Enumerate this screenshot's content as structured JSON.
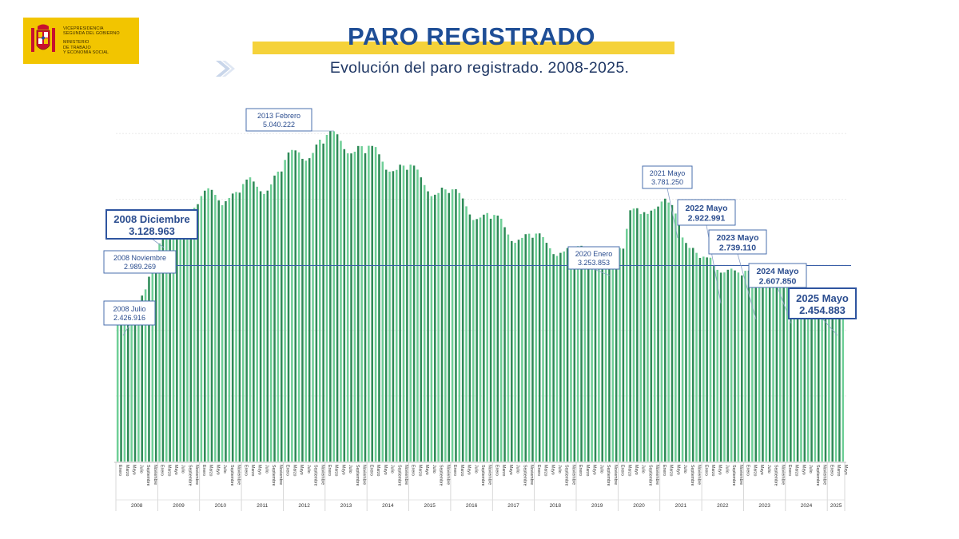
{
  "logo": {
    "line1": "VICEPRESIDENCIA",
    "line2": "SEGUNDA DEL GOBIERNO",
    "line3": "MINISTERIO",
    "line4": "DE TRABAJO",
    "line5": "Y ECONOMÍA SOCIAL",
    "icon": "spain-coat-of-arms-icon"
  },
  "header": {
    "title": "PARO REGISTRADO",
    "subtitle": "Evolución del paro registrado. 2008-2025.",
    "arrow_icon": "chevron-right-icon"
  },
  "colors": {
    "bar_light": "#6fcf97",
    "bar_dark": "#2e8b57",
    "reference_line": "#3a5fa8",
    "annotation": "#2b4d8f",
    "title": "#1f4e96",
    "band": "#f5d23a"
  },
  "chart_data": {
    "type": "bar",
    "title": "Evolución del paro registrado. 2008-2025.",
    "xlabel": "",
    "ylabel": "",
    "ylim": [
      0,
      5200000
    ],
    "grid": true,
    "legend": "none",
    "month_labels": [
      "Enero",
      "Marzo",
      "Mayo",
      "Julio",
      "Septiembre",
      "Noviembre"
    ],
    "years": [
      {
        "label": "2008",
        "months": 12
      },
      {
        "label": "2009",
        "months": 12
      },
      {
        "label": "2010",
        "months": 12
      },
      {
        "label": "2011",
        "months": 12
      },
      {
        "label": "2012",
        "months": 12
      },
      {
        "label": "2013",
        "months": 12
      },
      {
        "label": "2014",
        "months": 12
      },
      {
        "label": "2015",
        "months": 12
      },
      {
        "label": "2016",
        "months": 12
      },
      {
        "label": "2017",
        "months": 12
      },
      {
        "label": "2018",
        "months": 12
      },
      {
        "label": "2019",
        "months": 12
      },
      {
        "label": "2020",
        "months": 12
      },
      {
        "label": "2021",
        "months": 12
      },
      {
        "label": "2022",
        "months": 12
      },
      {
        "label": "2023",
        "months": 12
      },
      {
        "label": "2024",
        "months": 12
      },
      {
        "label": "2025",
        "months": 5
      }
    ],
    "values": [
      2261000,
      2315000,
      2301000,
      2338000,
      2352000,
      2390000,
      2427000,
      2531000,
      2625000,
      2818000,
      2989269,
      3128963,
      3327000,
      3482000,
      3605000,
      3645000,
      3620000,
      3565000,
      3544000,
      3629000,
      3709000,
      3808000,
      3868000,
      3924000,
      4048000,
      4130000,
      4166000,
      4142000,
      4066000,
      3982000,
      3908000,
      3970000,
      4018000,
      4086000,
      4110000,
      4100000,
      4231000,
      4299000,
      4333000,
      4269000,
      4190000,
      4121000,
      4080000,
      4131000,
      4226000,
      4360000,
      4420000,
      4422000,
      4599000,
      4712000,
      4751000,
      4744000,
      4714000,
      4615000,
      4587000,
      4625000,
      4705000,
      4833000,
      4907000,
      4848000,
      4980000,
      5040222,
      5035000,
      4989000,
      4890000,
      4763000,
      4699000,
      4698000,
      4724000,
      4811000,
      4808000,
      4701000,
      4814000,
      4812000,
      4795000,
      4684000,
      4572000,
      4449000,
      4420000,
      4428000,
      4447000,
      4526000,
      4512000,
      4448000,
      4526000,
      4512000,
      4451000,
      4333000,
      4215000,
      4120000,
      4046000,
      4068000,
      4094000,
      4176000,
      4149000,
      4094000,
      4150000,
      4152000,
      4094000,
      4011000,
      3891000,
      3767000,
      3683000,
      3697000,
      3720000,
      3764000,
      3789000,
      3702000,
      3760000,
      3750000,
      3702000,
      3573000,
      3462000,
      3362000,
      3335000,
      3382000,
      3410000,
      3467000,
      3474000,
      3412000,
      3476000,
      3479000,
      3422000,
      3335000,
      3252000,
      3163000,
      3135000,
      3182000,
      3203000,
      3255000,
      3252000,
      3202000,
      3285000,
      3289000,
      3255000,
      3164000,
      3079000,
      3015000,
      3011000,
      3066000,
      3079000,
      3177000,
      3198000,
      3163000,
      3253853,
      3246000,
      3548000,
      3831000,
      3857000,
      3862000,
      3773000,
      3802000,
      3776000,
      3826000,
      3851000,
      3888000,
      3964000,
      4008000,
      3949000,
      3910000,
      3781250,
      3614000,
      3416000,
      3333000,
      3257000,
      3257000,
      3182000,
      3105000,
      3124000,
      3112000,
      3108000,
      2993000,
      2922991,
      2880000,
      2883000,
      2924000,
      2941000,
      2914000,
      2882000,
      2837000,
      2908000,
      2911000,
      2863000,
      2788000,
      2739110,
      2688000,
      2678000,
      2702000,
      2722000,
      2759000,
      2735000,
      2707000,
      2767000,
      2760000,
      2727000,
      2666000,
      2607850,
      2561000,
      2550000,
      2573000,
      2575000,
      2608000,
      2586000,
      2560000,
      2599000,
      2594000,
      2580000,
      2513000,
      2454883
    ],
    "reference_line": 2989269,
    "annotations": [
      {
        "label": "2008 Julio",
        "value": "2.426.916",
        "index": 6,
        "size": "small"
      },
      {
        "label": "2008 Noviembre",
        "value": "2.989.269",
        "index": 10,
        "size": "small"
      },
      {
        "label": "2008 Diciembre",
        "value": "3.128.963",
        "index": 11,
        "size": "big"
      },
      {
        "label": "2013 Febrero",
        "value": "5.040.222",
        "index": 61,
        "size": "small"
      },
      {
        "label": "2020 Enero",
        "value": "3.253.853",
        "index": 144,
        "size": "small"
      },
      {
        "label": "2021 Mayo",
        "value": "3.781.250",
        "index": 160,
        "size": "small"
      },
      {
        "label": "2022 Mayo",
        "value": "2.922.991",
        "index": 172,
        "size": "medium"
      },
      {
        "label": "2023 Mayo",
        "value": "2.739.110",
        "index": 184,
        "size": "medium"
      },
      {
        "label": "2024 Mayo",
        "value": "2.607.850",
        "index": 196,
        "size": "medium"
      },
      {
        "label": "2025 Mayo",
        "value": "2.454.883",
        "index": 208,
        "size": "big"
      }
    ]
  }
}
